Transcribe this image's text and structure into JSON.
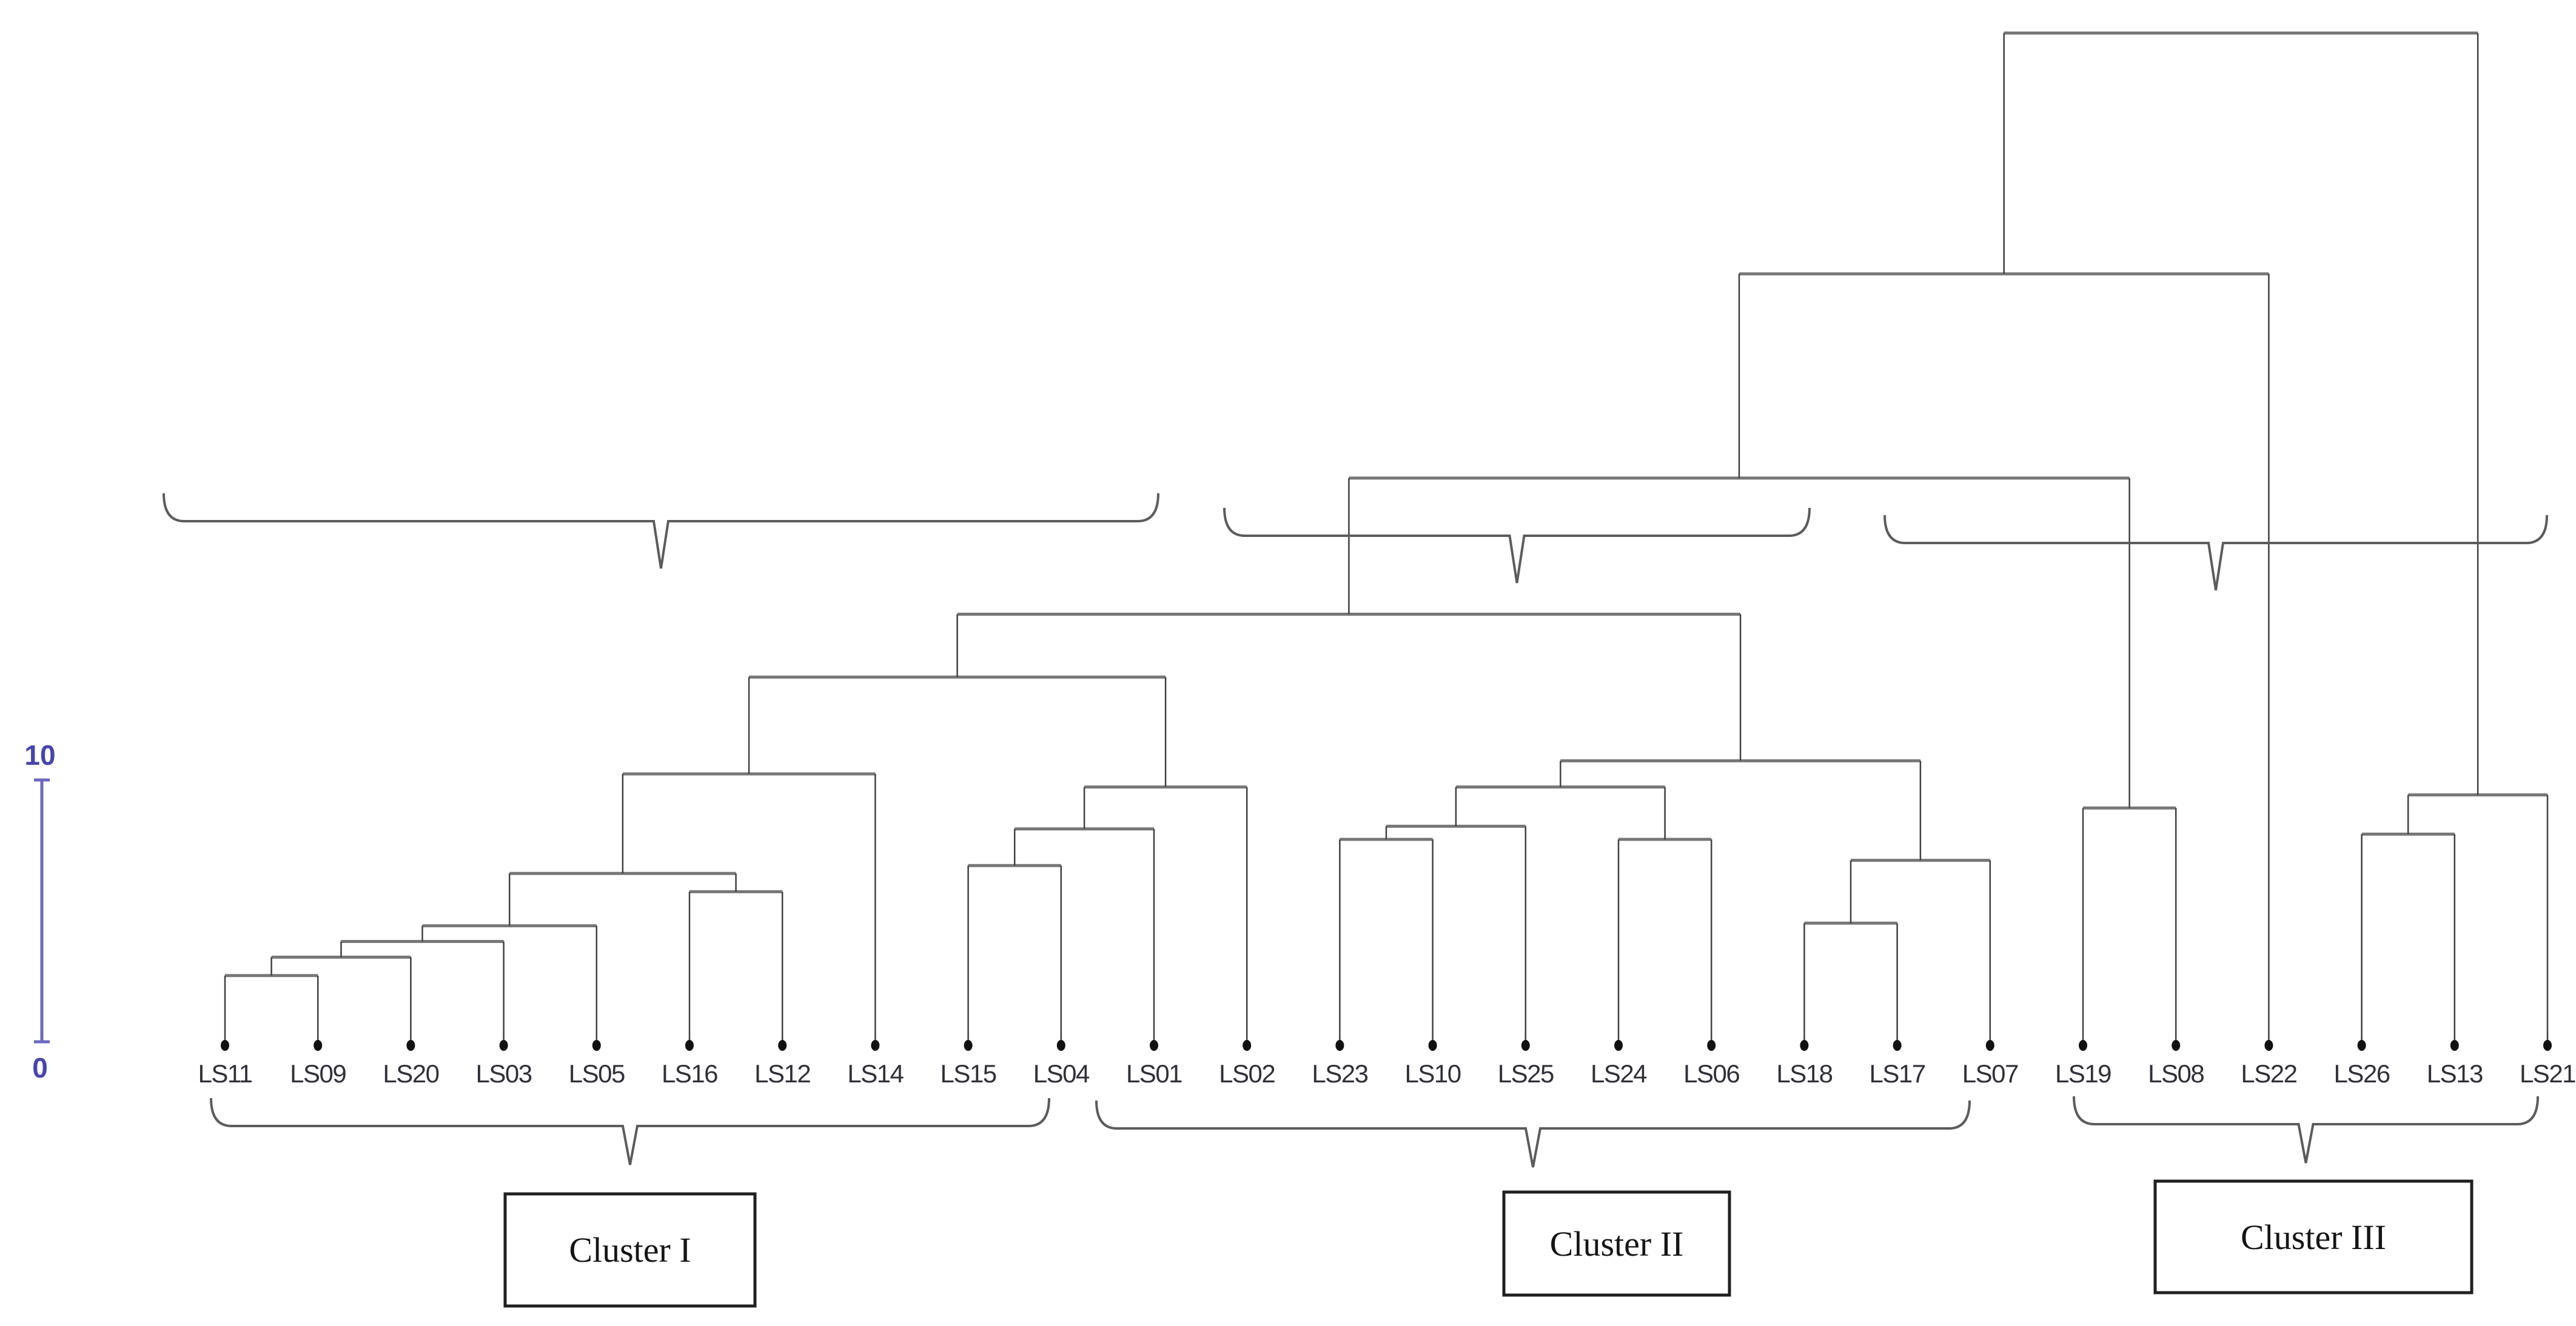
{
  "figure": {
    "kind": "hierarchical-clustering-dendrogram",
    "background": "#ffffff"
  },
  "colors": {
    "link_horizontal": "#777777",
    "link_vertical": "#414141",
    "leaf_dot": "#111111",
    "leaf_label": "#30303a",
    "scale": "#6b69c0",
    "scale_text": "#4545ad",
    "brace": "#5c5c5c",
    "box_border": "#202020",
    "box_text": "#151515"
  },
  "chart_data": {
    "type": "dendrogram",
    "orientation": "top-down",
    "title": "",
    "xlabel": "",
    "ylabel": "",
    "axis": {
      "min": 0,
      "max": 10,
      "min_label": "0",
      "max_label": "10",
      "position": "left"
    },
    "leaves": [
      "LS11",
      "LS09",
      "LS20",
      "LS03",
      "LS05",
      "LS16",
      "LS12",
      "LS14",
      "LS15",
      "LS04",
      "LS01",
      "LS02",
      "LS23",
      "LS10",
      "LS25",
      "LS24",
      "LS06",
      "LS18",
      "LS17",
      "LS07",
      "LS19",
      "LS08",
      "LS22",
      "LS26",
      "LS13",
      "LS21"
    ],
    "tree": [
      38.6,
      [
        29.4,
        [
          21.6,
          [
            16.4,
            [
              14.0,
              [
                10.3,
                [
                  6.5,
                  [
                    4.5,
                    [
                      3.9,
                      [
                        3.3,
                        [
                          2.6,
                          "LS11",
                          "LS09"
                        ],
                        "LS20"
                      ],
                      "LS03"
                    ],
                    "LS05"
                  ],
                  [
                    5.8,
                    "LS16",
                    "LS12"
                  ]
                ],
                "LS14"
              ],
              [
                9.8,
                [
                  8.2,
                  [
                    6.8,
                    "LS15",
                    "LS04"
                  ],
                  "LS01"
                ],
                "LS02"
              ]
            ],
            [
              10.8,
              [
                9.8,
                [
                  8.3,
                  [
                    7.8,
                    "LS23",
                    "LS10"
                  ],
                  "LS25"
                ],
                [
                  7.8,
                  "LS24",
                  "LS06"
                ]
              ],
              [
                7.0,
                [
                  4.6,
                  "LS18",
                  "LS17"
                ],
                "LS07"
              ]
            ]
          ],
          [
            9.0,
            "LS19",
            "LS08"
          ]
        ],
        "LS22"
      ],
      [
        9.5,
        [
          8.0,
          "LS26",
          "LS13"
        ],
        "LS21"
      ]
    ]
  },
  "clusters": [
    {
      "label": "Cluster I",
      "members": [
        "LS11",
        "LS09",
        "LS20",
        "LS03",
        "LS05",
        "LS16",
        "LS12",
        "LS14",
        "LS15",
        "LS04",
        "LS01",
        "LS02"
      ]
    },
    {
      "label": "Cluster II",
      "members": [
        "LS23",
        "LS10",
        "LS25",
        "LS24",
        "LS06",
        "LS18",
        "LS17",
        "LS07"
      ]
    },
    {
      "label": "Cluster III",
      "members": [
        "LS19",
        "LS08",
        "LS22",
        "LS26",
        "LS13",
        "LS21"
      ]
    }
  ]
}
